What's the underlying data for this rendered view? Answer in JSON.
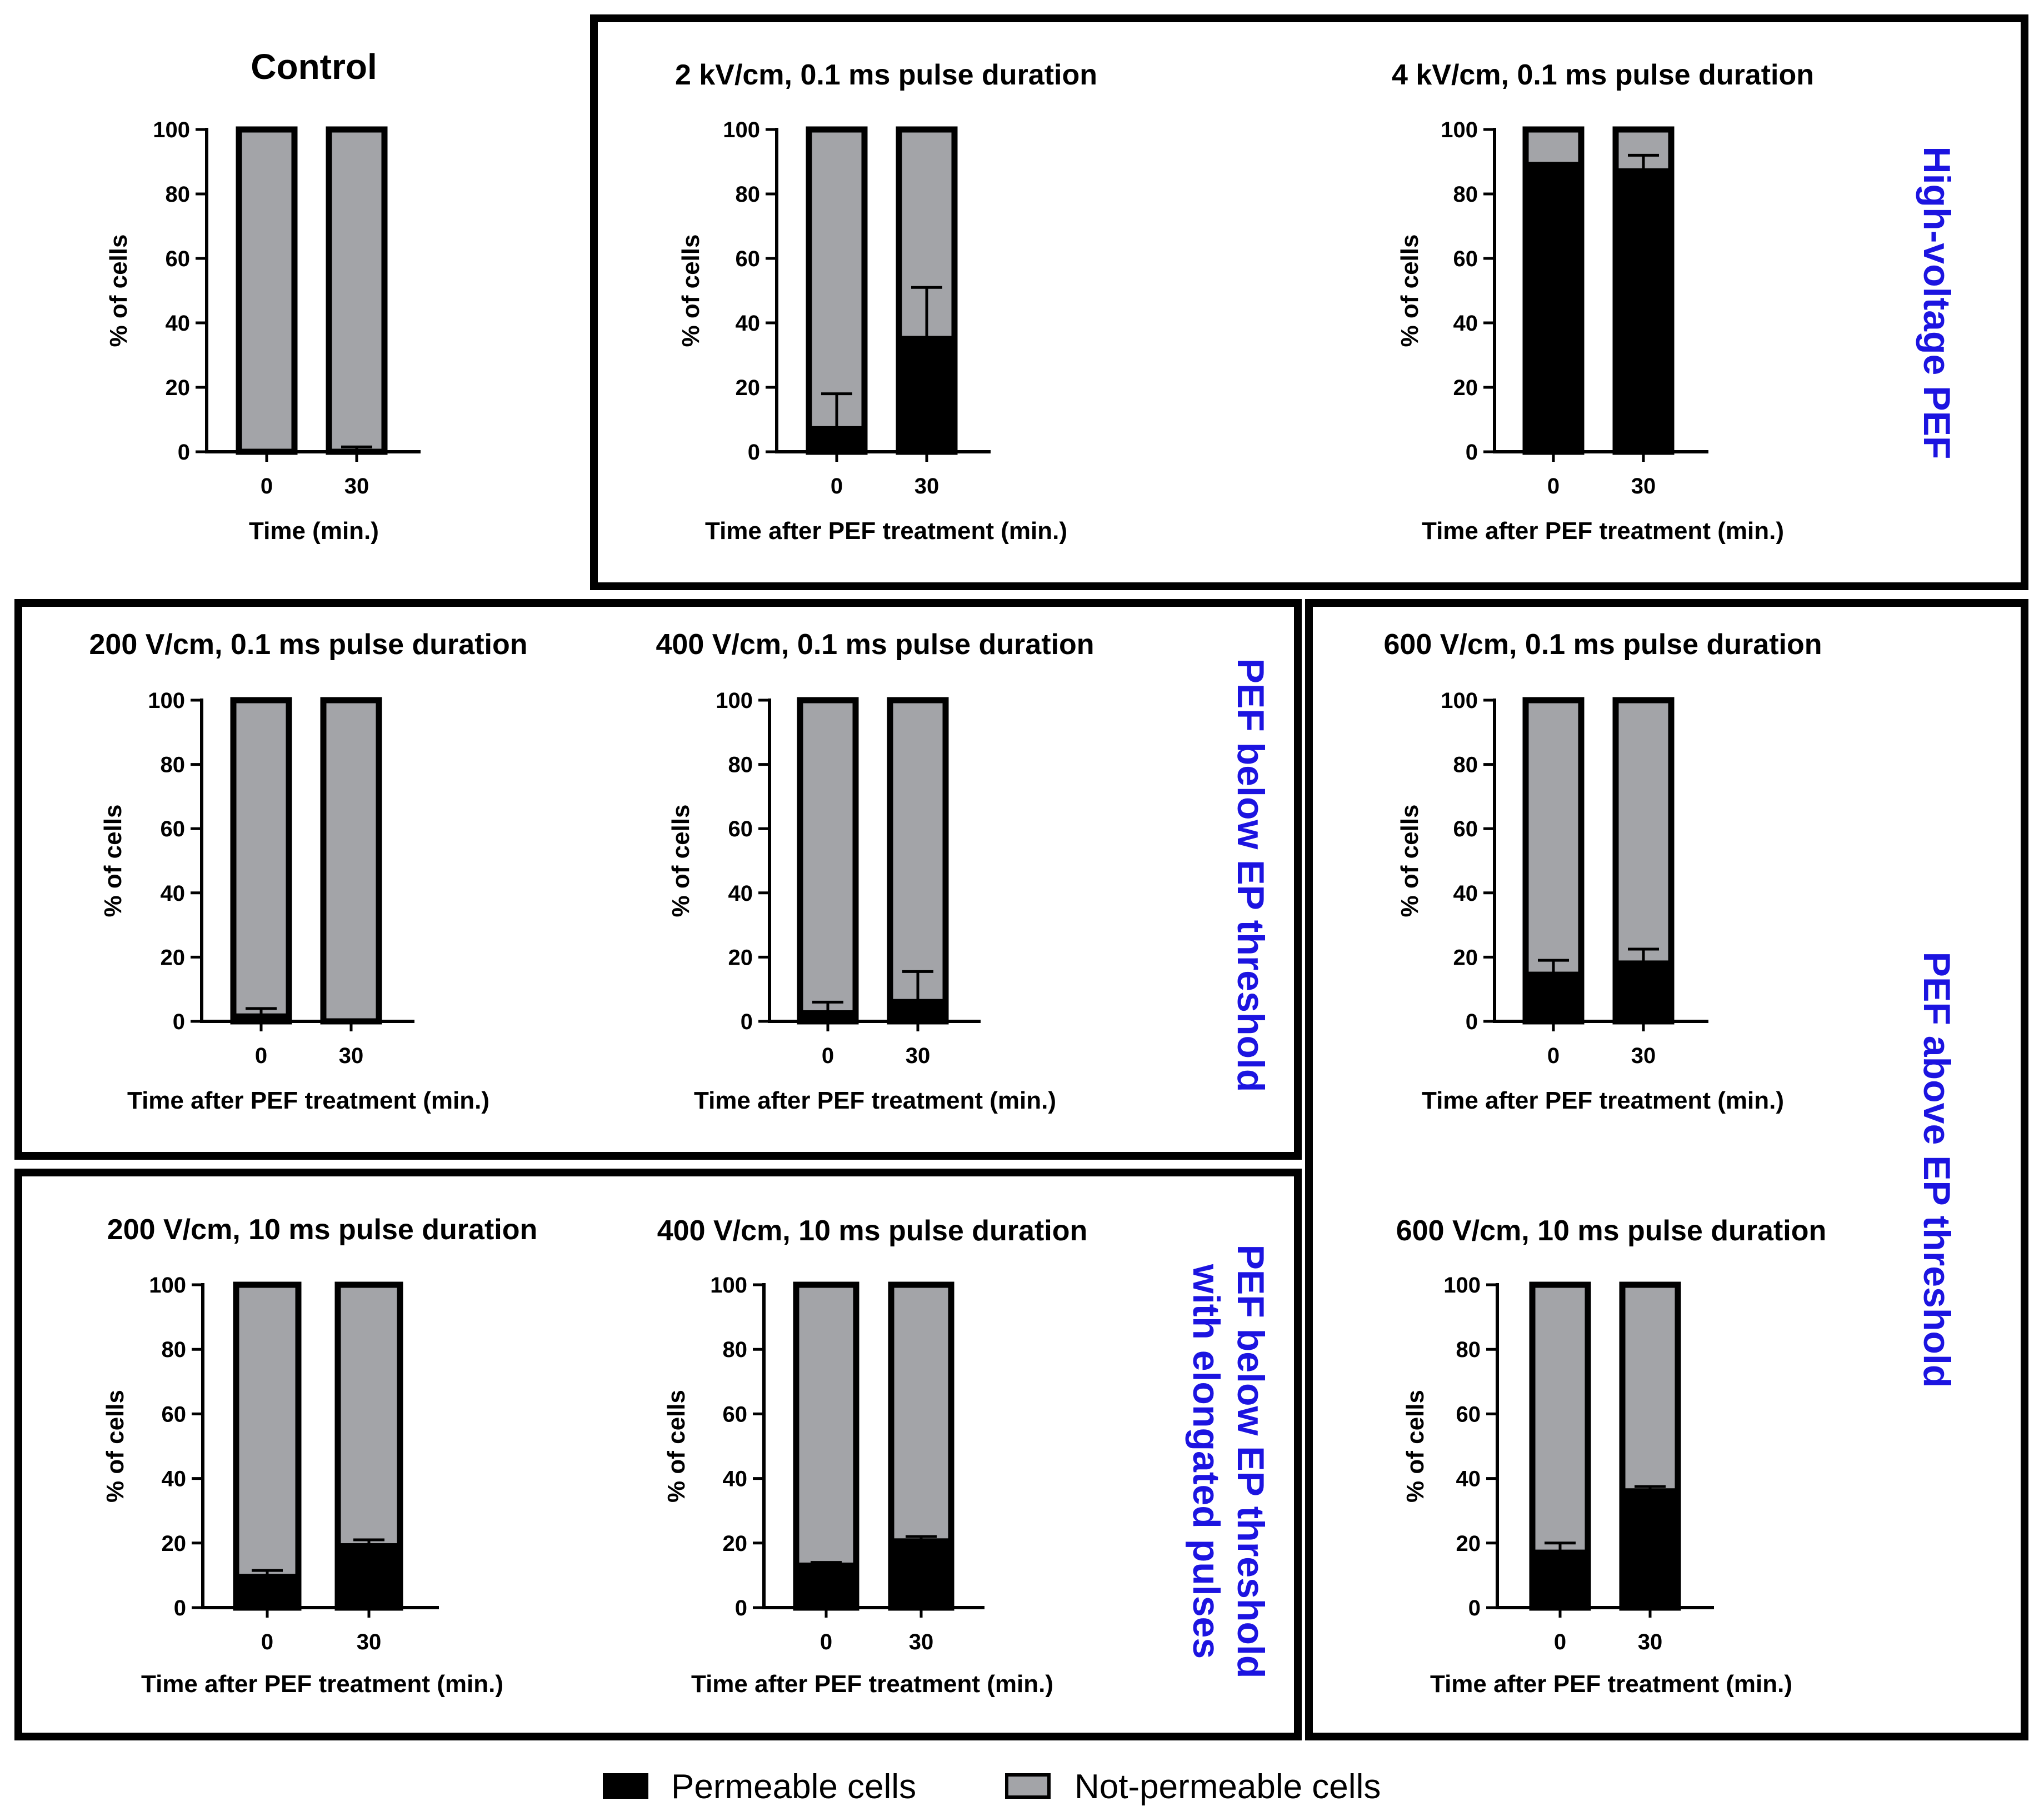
{
  "chart_data": [
    {
      "type": "bar",
      "stacked": true,
      "title": "Control",
      "xlabel": "Time (min.)",
      "ylabel": "% of cells",
      "categories": [
        "0",
        "30"
      ],
      "ylim": [
        0,
        100
      ],
      "yticks": [
        0,
        20,
        40,
        60,
        80,
        100
      ],
      "series": [
        {
          "name": "Permeable cells",
          "values": [
            0,
            0
          ],
          "error": [
            0,
            1.5
          ]
        },
        {
          "name": "Not-permeable cells",
          "values": [
            100,
            100
          ]
        }
      ]
    },
    {
      "type": "bar",
      "stacked": true,
      "title": "2 kV/cm, 0.1 ms pulse duration",
      "xlabel": "Time after PEF treatment (min.)",
      "ylabel": "% of cells",
      "categories": [
        "0",
        "30"
      ],
      "ylim": [
        0,
        100
      ],
      "yticks": [
        0,
        20,
        40,
        60,
        80,
        100
      ],
      "series": [
        {
          "name": "Permeable cells",
          "values": [
            7,
            35
          ],
          "error": [
            11,
            16
          ]
        },
        {
          "name": "Not-permeable cells",
          "values": [
            93,
            65
          ]
        }
      ]
    },
    {
      "type": "bar",
      "stacked": true,
      "title": "4 kV/cm, 0.1 ms pulse duration",
      "xlabel": "Time after PEF treatment (min.)",
      "ylabel": "% of cells",
      "categories": [
        "0",
        "30"
      ],
      "ylim": [
        0,
        100
      ],
      "yticks": [
        0,
        20,
        40,
        60,
        80,
        100
      ],
      "series": [
        {
          "name": "Permeable cells",
          "values": [
            89,
            87
          ],
          "error": [
            0.5,
            5
          ]
        },
        {
          "name": "Not-permeable cells",
          "values": [
            11,
            13
          ]
        }
      ]
    },
    {
      "type": "bar",
      "stacked": true,
      "title": "200 V/cm, 0.1 ms pulse duration",
      "xlabel": "Time after PEF treatment (min.)",
      "ylabel": "% of cells",
      "categories": [
        "0",
        "30"
      ],
      "ylim": [
        0,
        100
      ],
      "yticks": [
        0,
        20,
        40,
        60,
        80,
        100
      ],
      "series": [
        {
          "name": "Permeable cells",
          "values": [
            1.5,
            0
          ],
          "error": [
            2.5,
            0
          ]
        },
        {
          "name": "Not-permeable cells",
          "values": [
            98.5,
            100
          ]
        }
      ]
    },
    {
      "type": "bar",
      "stacked": true,
      "title": "400 V/cm, 0.1 ms pulse duration",
      "xlabel": "Time after PEF treatment (min.)",
      "ylabel": "% of cells",
      "categories": [
        "0",
        "30"
      ],
      "ylim": [
        0,
        100
      ],
      "yticks": [
        0,
        20,
        40,
        60,
        80,
        100
      ],
      "series": [
        {
          "name": "Permeable cells",
          "values": [
            2.5,
            6
          ],
          "error": [
            3.5,
            9.5
          ]
        },
        {
          "name": "Not-permeable cells",
          "values": [
            97.5,
            94
          ]
        }
      ]
    },
    {
      "type": "bar",
      "stacked": true,
      "title": "600 V/cm, 0.1 ms pulse duration",
      "xlabel": "Time after PEF treatment (min.)",
      "ylabel": "% of cells",
      "categories": [
        "0",
        "30"
      ],
      "ylim": [
        0,
        100
      ],
      "yticks": [
        0,
        20,
        40,
        60,
        80,
        100
      ],
      "series": [
        {
          "name": "Permeable cells",
          "values": [
            14.5,
            18
          ],
          "error": [
            4.5,
            4.5
          ]
        },
        {
          "name": "Not-permeable cells",
          "values": [
            85.5,
            82
          ]
        }
      ]
    },
    {
      "type": "bar",
      "stacked": true,
      "title": "200 V/cm, 10 ms pulse duration",
      "xlabel": "Time after PEF treatment (min.)",
      "ylabel": "% of cells",
      "categories": [
        "0",
        "30"
      ],
      "ylim": [
        0,
        100
      ],
      "yticks": [
        0,
        20,
        40,
        60,
        80,
        100
      ],
      "series": [
        {
          "name": "Permeable cells",
          "values": [
            9.5,
            19
          ],
          "error": [
            2,
            2
          ]
        },
        {
          "name": "Not-permeable cells",
          "values": [
            90.5,
            81
          ]
        }
      ]
    },
    {
      "type": "bar",
      "stacked": true,
      "title": "400 V/cm, 10 ms pulse duration",
      "xlabel": "Time after PEF treatment (min.)",
      "ylabel": "% of cells",
      "categories": [
        "0",
        "30"
      ],
      "ylim": [
        0,
        100
      ],
      "yticks": [
        0,
        20,
        40,
        60,
        80,
        100
      ],
      "series": [
        {
          "name": "Permeable cells",
          "values": [
            13,
            20.5
          ],
          "error": [
            1,
            1.5
          ]
        },
        {
          "name": "Not-permeable cells",
          "values": [
            87,
            79.5
          ]
        }
      ]
    },
    {
      "type": "bar",
      "stacked": true,
      "title": "600 V/cm, 10 ms pulse duration",
      "xlabel": "Time after PEF treatment (min.)",
      "ylabel": "% of cells",
      "categories": [
        "0",
        "30"
      ],
      "ylim": [
        0,
        100
      ],
      "yticks": [
        0,
        20,
        40,
        60,
        80,
        100
      ],
      "series": [
        {
          "name": "Permeable cells",
          "values": [
            17,
            36
          ],
          "error": [
            3,
            1.5
          ]
        },
        {
          "name": "Not-permeable cells",
          "values": [
            83,
            64
          ]
        }
      ]
    }
  ],
  "groups": {
    "high_voltage": "High-voltage PEF",
    "below": "PEF below EP threshold",
    "above": "PEF above EP threshold",
    "elongated": [
      "PEF below EP threshold",
      "with elongated pulses"
    ]
  },
  "legend": {
    "items": [
      {
        "label": "Permeable cells",
        "color": "#000000"
      },
      {
        "label": "Not-permeable cells",
        "color": "#a3a4a8"
      }
    ]
  },
  "colors": {
    "permeable": "#000000",
    "not_permeable": "#a3a4a8",
    "group_label": "#1c14e0",
    "control_title": "#1c14e0"
  }
}
